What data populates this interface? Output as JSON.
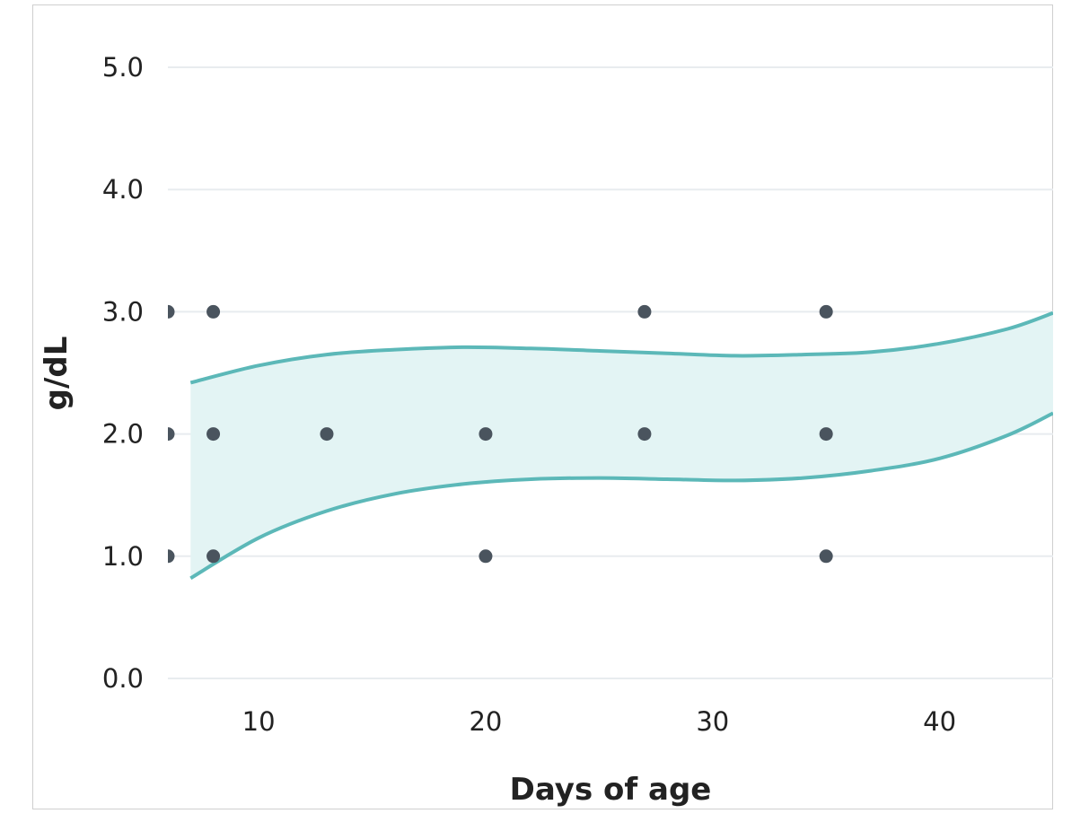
{
  "chart_data": {
    "type": "scatter",
    "title": "",
    "xlabel": "Days of age",
    "ylabel": "g/dL",
    "xlim": [
      6,
      45
    ],
    "ylim": [
      0,
      5.0
    ],
    "x_ticks": [
      10,
      20,
      30,
      40
    ],
    "y_ticks": [
      0,
      1,
      2,
      3,
      4,
      5
    ],
    "y_tick_labels": [
      "0.0",
      "1.0",
      "2.0",
      "3.0",
      "4.0",
      "5.0"
    ],
    "grid": "horizontal",
    "legend": "none",
    "series": [
      {
        "type": "scatter",
        "points": [
          {
            "x": 6,
            "y": 3.0
          },
          {
            "x": 6,
            "y": 2.0
          },
          {
            "x": 6,
            "y": 1.0
          },
          {
            "x": 8,
            "y": 3.0
          },
          {
            "x": 8,
            "y": 2.0
          },
          {
            "x": 8,
            "y": 1.0
          },
          {
            "x": 13,
            "y": 2.0
          },
          {
            "x": 20,
            "y": 2.0
          },
          {
            "x": 20,
            "y": 1.0
          },
          {
            "x": 27,
            "y": 3.0
          },
          {
            "x": 27,
            "y": 2.0
          },
          {
            "x": 35,
            "y": 3.0
          },
          {
            "x": 35,
            "y": 2.0
          },
          {
            "x": 35,
            "y": 1.0
          }
        ]
      }
    ],
    "band": {
      "x": [
        7,
        10,
        13,
        16,
        19,
        22,
        25,
        28,
        31,
        34,
        37,
        40,
        43,
        45
      ],
      "upper": [
        2.42,
        2.56,
        2.65,
        2.69,
        2.71,
        2.7,
        2.68,
        2.66,
        2.64,
        2.65,
        2.67,
        2.74,
        2.86,
        2.99
      ],
      "lower": [
        0.82,
        1.15,
        1.37,
        1.51,
        1.59,
        1.63,
        1.64,
        1.63,
        1.62,
        1.64,
        1.7,
        1.8,
        1.99,
        2.17
      ]
    },
    "colors": {
      "point": "#4a545e",
      "band_line": "#5cb8b8",
      "band_fill": "#e3f4f4",
      "grid": "#e8ecef",
      "text": "#222222"
    }
  }
}
